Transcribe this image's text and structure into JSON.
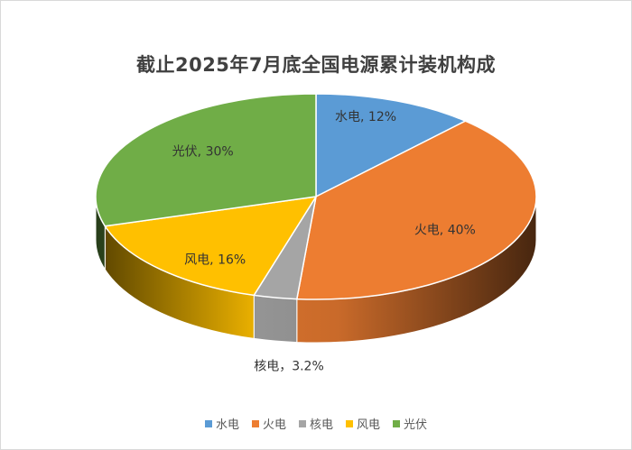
{
  "chart_data": {
    "type": "pie",
    "title": "截止2025年7月底全国电源累计装机构成",
    "categories": [
      "水电",
      "火电",
      "核电",
      "风电",
      "光伏"
    ],
    "values": [
      12,
      40,
      3.2,
      16,
      30
    ],
    "labels": [
      "水电, 12%",
      "火电, 40%",
      "核电，3.2%",
      "风电, 16%",
      "光伏, 30%"
    ],
    "colors": [
      "#5b9bd5",
      "#ed7d31",
      "#a5a5a5",
      "#ffc000",
      "#70ad47"
    ],
    "legend_position": "bottom",
    "style": "3d"
  }
}
